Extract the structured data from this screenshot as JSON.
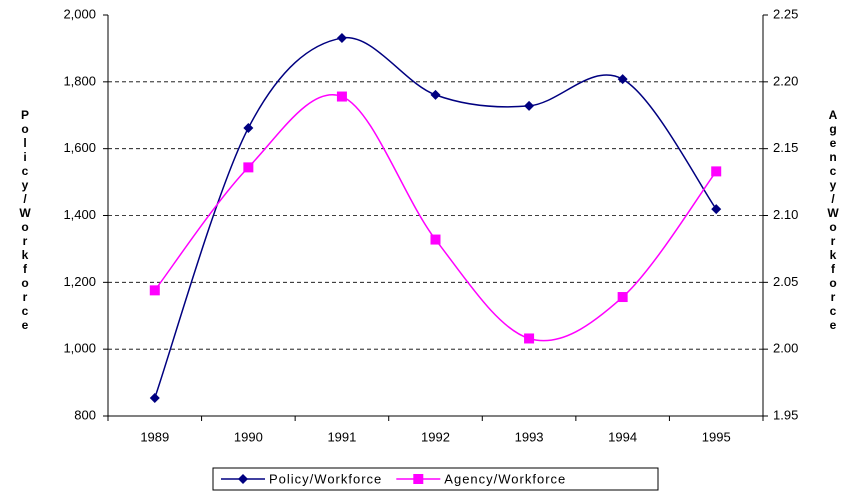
{
  "chart_data": {
    "type": "line",
    "categories": [
      "1989",
      "1990",
      "1991",
      "1992",
      "1993",
      "1994",
      "1995"
    ],
    "y_label": "Policy/Workforce",
    "y2_label": "Agency/Workforce",
    "ylim": [
      800,
      2000
    ],
    "yticks": [
      {
        "value": 800,
        "label": "800"
      },
      {
        "value": 1000,
        "label": "1,000"
      },
      {
        "value": 1200,
        "label": "1,200"
      },
      {
        "value": 1400,
        "label": "1,400"
      },
      {
        "value": 1600,
        "label": "1,600"
      },
      {
        "value": 1800,
        "label": "1,800"
      },
      {
        "value": 2000,
        "label": "2,000"
      }
    ],
    "y2lim": [
      1.95,
      2.25
    ],
    "y2ticks": [
      1.95,
      {
        "value": 2.0,
        "label": "2.00"
      },
      2.05,
      {
        "value": 2.1,
        "label": "2.10"
      },
      2.15,
      {
        "value": 2.2,
        "label": "2.20"
      },
      2.25
    ],
    "grid": true,
    "legend": "bottom",
    "series": [
      {
        "name": "Policy/Workforce",
        "color": "#000080",
        "marker": "diamond",
        "values": [
          854,
          1662,
          1931,
          1761,
          1728,
          1808,
          1419
        ]
      },
      {
        "name": "Agency/Workforce",
        "color": "#ff00ff",
        "marker": "square",
        "axis": "y2",
        "values": [
          2.044,
          2.136,
          2.189,
          2.082,
          2.008,
          2.039,
          2.133
        ]
      }
    ]
  }
}
